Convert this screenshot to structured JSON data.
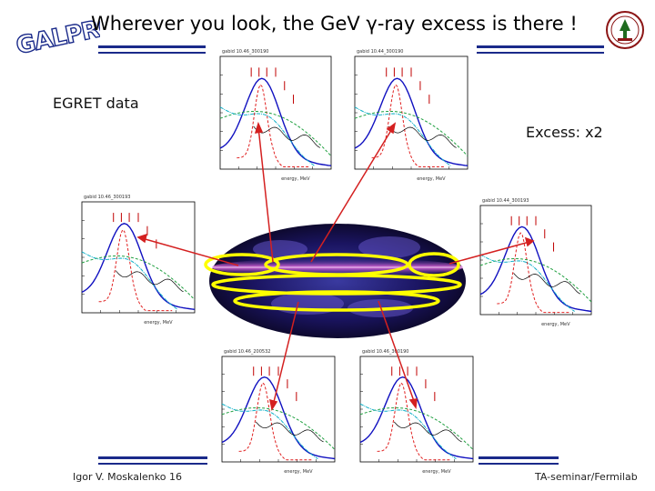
{
  "slide": {
    "title": "Wherever you look, the GeV γ-ray excess is there !",
    "logo_text": "GALPROP",
    "seal_icon": "stanford-seal-icon",
    "label_left": "EGRET data",
    "label_right": "Excess: x2",
    "footer_left": "Igor V. Moskalenko  16",
    "footer_right": "TA-seminar/Fermilab"
  },
  "panels": [
    {
      "id": "top-left",
      "header": "gabid 10.46_300190",
      "xlabel": "energy, MeV"
    },
    {
      "id": "top-right",
      "header": "gabid 10.44_300190",
      "xlabel": "energy, MeV"
    },
    {
      "id": "mid-left",
      "header": "gabid 10.46_300193",
      "xlabel": "energy, MeV"
    },
    {
      "id": "mid-right",
      "header": "gabid 10.44_300193",
      "xlabel": "energy, MeV"
    },
    {
      "id": "bottom-left",
      "header": "gabid 10.46_200532",
      "xlabel": "energy, MeV"
    },
    {
      "id": "bottom-right",
      "header": "gabid 10.46_300190",
      "xlabel": "energy, MeV"
    }
  ],
  "colors": {
    "rule": "#1a2a8a",
    "arrow": "#d42020",
    "ellipse": "#ffff00",
    "total_model": "#1010c0",
    "pi0": "#e02020",
    "ics": "#20a040",
    "brems": "#10b0c8",
    "egret": "#c00000"
  }
}
